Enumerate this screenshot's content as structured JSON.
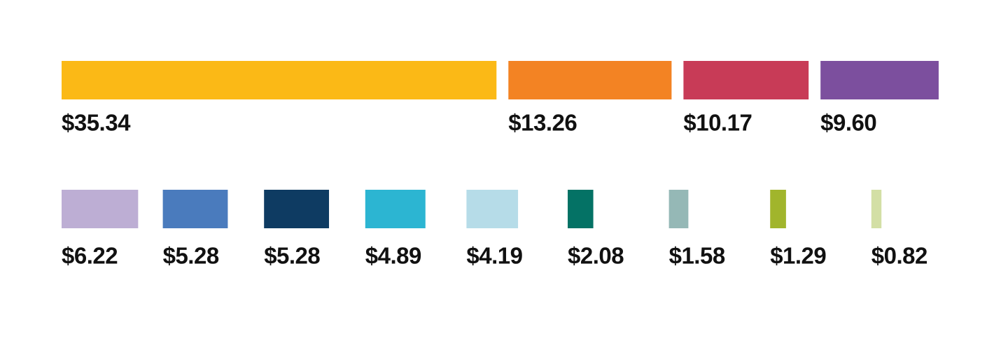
{
  "chart_data": {
    "type": "bar",
    "values": [
      35.34,
      13.26,
      10.17,
      9.6,
      6.22,
      5.28,
      5.28,
      4.89,
      4.19,
      2.08,
      1.58,
      1.29,
      0.82
    ],
    "value_labels": [
      "$35.34",
      "$13.26",
      "$10.17",
      "$9.60",
      "$6.22",
      "$5.28",
      "$5.28",
      "$4.89",
      "$4.19",
      "$2.08",
      "$1.58",
      "$1.29",
      "$0.82"
    ],
    "colors": [
      "#fbb916",
      "#f38323",
      "#c83b57",
      "#7c4f9e",
      "#bdaed4",
      "#4a7bbd",
      "#0e3b62",
      "#2cb5d2",
      "#b6dce8",
      "#047265",
      "#95b8b6",
      "#a1b52c",
      "#d3dfa5"
    ]
  }
}
